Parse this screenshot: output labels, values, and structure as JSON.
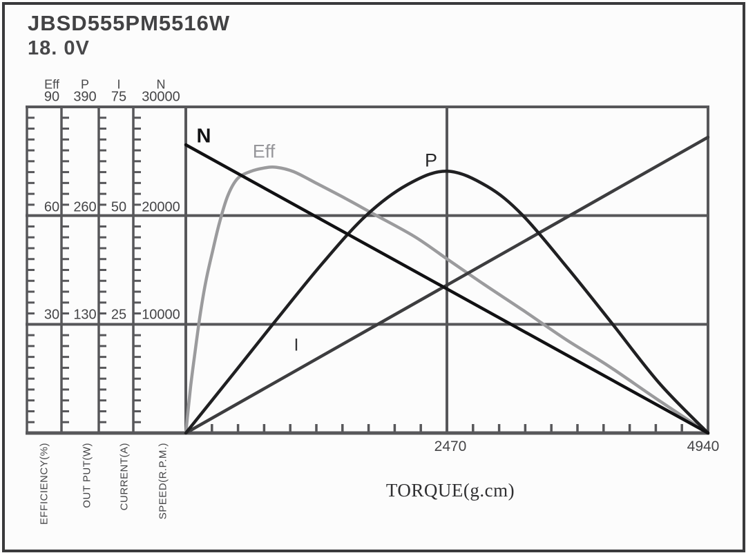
{
  "header": {
    "model": "JBSD555PM5516W",
    "voltage": "18. 0V"
  },
  "colors": {
    "grid": "#57575a",
    "border": "#39393b",
    "background": "#fcfcfc",
    "n_curve": "#111113",
    "eff_curve": "#9b9b9d",
    "p_curve": "#202022",
    "i_curve": "#3d3d3f"
  },
  "chart_data": {
    "type": "line",
    "title": "JBSD555PM5516W",
    "subtitle": "18. 0V",
    "grid": true,
    "legend_position": "inline-curve-labels",
    "x_axis": {
      "label": "TORQUE(g.cm)",
      "min": 0,
      "max": 4940,
      "tick_values": [
        2470,
        4940
      ],
      "tick_labels": [
        "2470",
        "4940"
      ],
      "minor_divisions": 20
    },
    "y_axes": [
      {
        "id": "eff",
        "name": "Eff",
        "axis_label": "EFFICIENCY(%)",
        "min": 0,
        "max": 90,
        "tick_values": [
          90,
          60,
          30
        ],
        "tick_labels": [
          "90",
          "60",
          "30"
        ],
        "minor_per_major": 10
      },
      {
        "id": "p",
        "name": "P",
        "axis_label": "OUT PUT(W)",
        "min": 0,
        "max": 390,
        "tick_values": [
          390,
          260,
          130
        ],
        "tick_labels": [
          "390",
          "260",
          "130"
        ],
        "minor_per_major": 10
      },
      {
        "id": "i",
        "name": "I",
        "axis_label": "CURRENT(A)",
        "min": 0,
        "max": 75,
        "tick_values": [
          75,
          50,
          25
        ],
        "tick_labels": [
          "75",
          "50",
          "25"
        ],
        "minor_per_major": 10
      },
      {
        "id": "n",
        "name": "N",
        "axis_label": "SPEED(R.P.M.)",
        "min": 0,
        "max": 30000,
        "tick_values": [
          30000,
          20000,
          10000
        ],
        "tick_labels": [
          "30000",
          "20000",
          "10000"
        ],
        "minor_per_major": 10
      }
    ],
    "series": [
      {
        "name": "N",
        "axis": "n",
        "color_key": "n_curve",
        "smooth": false,
        "description": "speed vs torque, linear, no-load 26500 RPM to stall at 4940 g.cm",
        "points": [
          [
            0,
            26500
          ],
          [
            4940,
            0
          ]
        ]
      },
      {
        "name": "Eff",
        "axis": "eff",
        "color_key": "eff_curve",
        "smooth": true,
        "description": "efficiency vs torque, peak about 73% near 850 g.cm",
        "points": [
          [
            0,
            0
          ],
          [
            46,
            12.9
          ],
          [
            92,
            23.4
          ],
          [
            137,
            32.9
          ],
          [
            190,
            41.9
          ],
          [
            248,
            49.5
          ],
          [
            320,
            58.2
          ],
          [
            399,
            65.6
          ],
          [
            490,
            70.2
          ],
          [
            608,
            72.1
          ],
          [
            738,
            73.1
          ],
          [
            856,
            73.3
          ],
          [
            1019,
            72.1
          ],
          [
            1248,
            68.7
          ],
          [
            1510,
            64.7
          ],
          [
            1771,
            60.5
          ],
          [
            2163,
            54.2
          ],
          [
            2477,
            47.9
          ],
          [
            2816,
            41.1
          ],
          [
            3189,
            33.9
          ],
          [
            3601,
            25.7
          ],
          [
            3993,
            18.6
          ],
          [
            4450,
            9.5
          ],
          [
            4940,
            0
          ]
        ]
      },
      {
        "name": "P",
        "axis": "p",
        "color_key": "p_curve",
        "smooth": true,
        "description": "output power vs torque, peak about 313 W at 2470 g.cm",
        "points": [
          [
            0,
            0
          ],
          [
            464,
            73
          ],
          [
            836,
            132
          ],
          [
            1294,
            203
          ],
          [
            1706,
            260
          ],
          [
            2098,
            297
          ],
          [
            2470,
            313
          ],
          [
            2849,
            295
          ],
          [
            3189,
            260
          ],
          [
            3620,
            196
          ],
          [
            4026,
            132
          ],
          [
            4483,
            59
          ],
          [
            4940,
            0
          ]
        ]
      },
      {
        "name": "I",
        "axis": "i",
        "color_key": "i_curve",
        "smooth": false,
        "description": "current vs torque, linear, 0 A to about 68 A at stall",
        "points": [
          [
            0,
            0
          ],
          [
            4940,
            68
          ]
        ]
      }
    ]
  }
}
